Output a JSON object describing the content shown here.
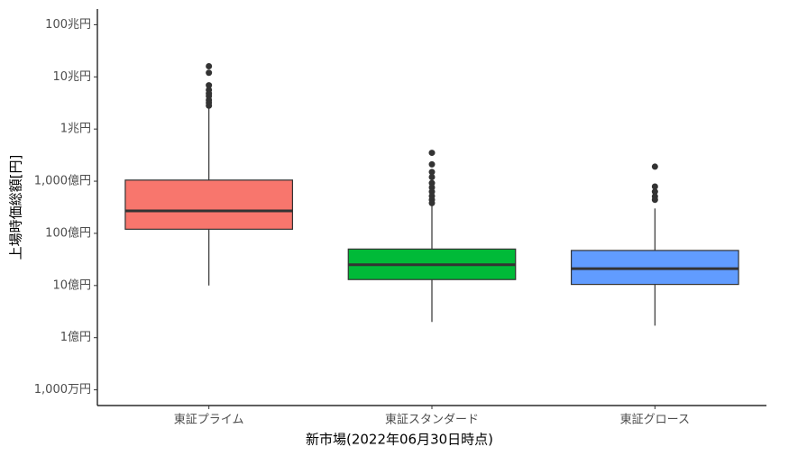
{
  "chart_data": {
    "type": "box",
    "x_label": "新市場(2022年06月30日時点)",
    "y_label": "上場時価総額[円]",
    "categories": [
      "東証プライム",
      "東証スタンダード",
      "東証グロース"
    ],
    "colors": [
      "#F8766D",
      "#00BA38",
      "#619CFF"
    ],
    "yscale": "log",
    "ylim": [
      5000000,
      200000000000000
    ],
    "yticks": [
      {
        "value": 10000000,
        "label": "1,000万円"
      },
      {
        "value": 100000000,
        "label": "1億円"
      },
      {
        "value": 1000000000,
        "label": "10億円"
      },
      {
        "value": 10000000000,
        "label": "100億円"
      },
      {
        "value": 100000000000,
        "label": "1,000億円"
      },
      {
        "value": 1000000000000,
        "label": "1兆円"
      },
      {
        "value": 10000000000000,
        "label": "10兆円"
      },
      {
        "value": 100000000000000,
        "label": "100兆円"
      }
    ],
    "boxes": [
      {
        "min": 1000000000,
        "q1": 12000000000,
        "median": 27000000000,
        "q3": 105000000000,
        "max": 2600000000000,
        "outliers": [
          16000000000000,
          12000000000000,
          6900000000000,
          5600000000000,
          4800000000000,
          4300000000000,
          3600000000000,
          3200000000000,
          2800000000000
        ]
      },
      {
        "min": 200000000,
        "q1": 1300000000,
        "median": 2500000000,
        "q3": 5000000000,
        "max": 35000000000,
        "outliers": [
          350000000000,
          210000000000,
          150000000000,
          120000000000,
          92000000000,
          76000000000,
          63000000000,
          52000000000,
          44000000000,
          38000000000
        ]
      },
      {
        "min": 170000000,
        "q1": 1050000000,
        "median": 2100000000,
        "q3": 4700000000,
        "max": 30000000000,
        "outliers": [
          190000000000,
          79000000000,
          63000000000,
          51000000000,
          44000000000
        ]
      }
    ]
  }
}
